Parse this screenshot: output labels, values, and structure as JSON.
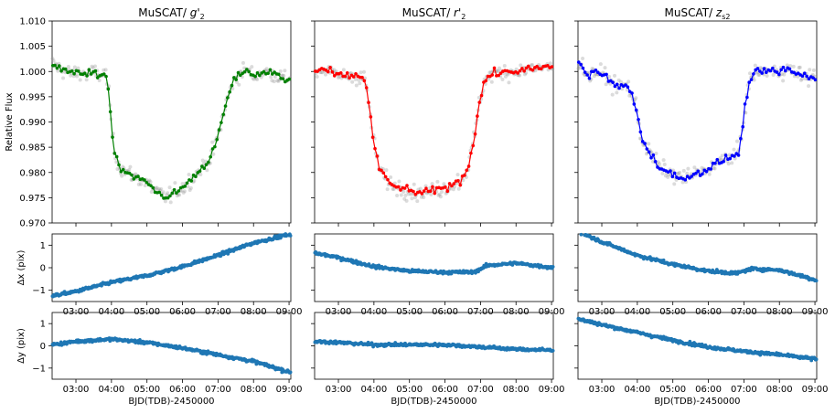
{
  "chart_data": {
    "type": "line",
    "x_label": "BJD(TDB)-2450000",
    "x_ticks": [
      "03:00",
      "04:00",
      "05:00",
      "06:00",
      "07:00",
      "08:00",
      "09:00"
    ],
    "x_tick_hours": [
      3,
      4,
      5,
      6,
      7,
      8,
      9
    ],
    "x_range_hours": [
      2.33,
      9.05
    ],
    "columns": [
      {
        "title_prefix": "MuSCAT/ ",
        "band": "g'",
        "band_sub": "2",
        "color": "#008000"
      },
      {
        "title_prefix": "MuSCAT/ ",
        "band": "r'",
        "band_sub": "2",
        "color": "#ff0000"
      },
      {
        "title_prefix": "MuSCAT/ ",
        "band": "z",
        "band_sub": "s2",
        "color": "#0000ff"
      }
    ],
    "flux_panel": {
      "ylabel": "Relative Flux",
      "ylim": [
        0.97,
        1.01
      ],
      "yticks": [
        "0.970",
        "0.975",
        "0.980",
        "0.985",
        "0.990",
        "0.995",
        "1.000",
        "1.005",
        "1.010"
      ],
      "raw_color": "#999999",
      "series": [
        {
          "band": "g'2",
          "binned": [
            [
              2.35,
              1.0015
            ],
            [
              2.5,
              1.0008
            ],
            [
              2.7,
              1.0
            ],
            [
              2.9,
              0.9995
            ],
            [
              3.1,
              1.0
            ],
            [
              3.3,
              0.9992
            ],
            [
              3.5,
              0.9998
            ],
            [
              3.7,
              0.9993
            ],
            [
              3.85,
              0.9994
            ],
            [
              3.92,
              0.996
            ],
            [
              3.98,
              0.991
            ],
            [
              4.05,
              0.986
            ],
            [
              4.12,
              0.983
            ],
            [
              4.25,
              0.981
            ],
            [
              4.45,
              0.98
            ],
            [
              4.7,
              0.979
            ],
            [
              5.0,
              0.978
            ],
            [
              5.3,
              0.976
            ],
            [
              5.5,
              0.9752
            ],
            [
              5.7,
              0.9755
            ],
            [
              6.0,
              0.977
            ],
            [
              6.3,
              0.979
            ],
            [
              6.55,
              0.981
            ],
            [
              6.8,
              0.983
            ],
            [
              7.0,
              0.987
            ],
            [
              7.2,
              0.993
            ],
            [
              7.4,
              0.9975
            ],
            [
              7.6,
              0.9995
            ],
            [
              7.8,
              1.0005
            ],
            [
              8.0,
              0.999
            ],
            [
              8.3,
              1.0
            ],
            [
              8.6,
              0.9995
            ],
            [
              8.9,
              0.9985
            ],
            [
              9.05,
              0.999
            ]
          ]
        },
        {
          "band": "r'2",
          "binned": [
            [
              2.35,
              1.0
            ],
            [
              2.6,
              1.0005
            ],
            [
              2.85,
              0.9995
            ],
            [
              3.1,
              0.999
            ],
            [
              3.35,
              0.9992
            ],
            [
              3.6,
              0.999
            ],
            [
              3.75,
              0.9985
            ],
            [
              3.85,
              0.994
            ],
            [
              3.95,
              0.988
            ],
            [
              4.05,
              0.984
            ],
            [
              4.15,
              0.981
            ],
            [
              4.3,
              0.979
            ],
            [
              4.5,
              0.9775
            ],
            [
              4.75,
              0.977
            ],
            [
              5.0,
              0.9763
            ],
            [
              5.3,
              0.976
            ],
            [
              5.6,
              0.9762
            ],
            [
              5.9,
              0.9768
            ],
            [
              6.2,
              0.9775
            ],
            [
              6.45,
              0.9785
            ],
            [
              6.65,
              0.981
            ],
            [
              6.8,
              0.986
            ],
            [
              6.95,
              0.993
            ],
            [
              7.1,
              0.998
            ],
            [
              7.3,
              0.9995
            ],
            [
              7.6,
              0.9998
            ],
            [
              7.9,
              1.0
            ],
            [
              8.2,
              1.0002
            ],
            [
              8.5,
              1.0005
            ],
            [
              8.8,
              1.0008
            ],
            [
              9.05,
              1.001
            ]
          ]
        },
        {
          "band": "zs2",
          "binned": [
            [
              2.35,
              1.002
            ],
            [
              2.5,
              1.0005
            ],
            [
              2.65,
              0.999
            ],
            [
              2.8,
              1.0
            ],
            [
              2.95,
              0.9995
            ],
            [
              3.1,
              0.9992
            ],
            [
              3.3,
              0.9975
            ],
            [
              3.5,
              0.997
            ],
            [
              3.7,
              0.9972
            ],
            [
              3.85,
              0.9955
            ],
            [
              4.0,
              0.992
            ],
            [
              4.1,
              0.987
            ],
            [
              4.25,
              0.985
            ],
            [
              4.45,
              0.983
            ],
            [
              4.6,
              0.9812
            ],
            [
              4.8,
              0.9802
            ],
            [
              5.0,
              0.9795
            ],
            [
              5.2,
              0.979
            ],
            [
              5.45,
              0.9792
            ],
            [
              5.7,
              0.9798
            ],
            [
              5.9,
              0.9805
            ],
            [
              6.1,
              0.9812
            ],
            [
              6.3,
              0.982
            ],
            [
              6.5,
              0.9828
            ],
            [
              6.7,
              0.9832
            ],
            [
              6.85,
              0.9838
            ],
            [
              6.95,
              0.988
            ],
            [
              7.05,
              0.994
            ],
            [
              7.15,
              0.998
            ],
            [
              7.3,
              0.9995
            ],
            [
              7.6,
              1.0002
            ],
            [
              7.9,
              0.9998
            ],
            [
              8.2,
              1.0005
            ],
            [
              8.5,
              0.9995
            ],
            [
              8.8,
              0.999
            ],
            [
              9.05,
              0.9988
            ]
          ]
        }
      ]
    },
    "dx_panel": {
      "ylabel": "Δx (pix)",
      "ylim": [
        -1.5,
        1.5
      ],
      "yticks": [
        "−1",
        "0",
        "1"
      ],
      "ytick_values": [
        -1,
        0,
        1
      ],
      "color": "#1f77b4",
      "series": [
        {
          "band": "g'2",
          "trend": [
            [
              2.35,
              -1.25
            ],
            [
              3.0,
              -1.05
            ],
            [
              4.0,
              -0.65
            ],
            [
              5.0,
              -0.35
            ],
            [
              6.0,
              0.05
            ],
            [
              7.0,
              0.55
            ],
            [
              8.0,
              1.1
            ],
            [
              9.05,
              1.5
            ]
          ]
        },
        {
          "band": "r'2",
          "trend": [
            [
              2.35,
              0.65
            ],
            [
              3.0,
              0.45
            ],
            [
              4.0,
              0.05
            ],
            [
              5.0,
              -0.15
            ],
            [
              6.0,
              -0.2
            ],
            [
              6.8,
              -0.2
            ],
            [
              7.2,
              0.1
            ],
            [
              8.0,
              0.2
            ],
            [
              9.05,
              0.0
            ]
          ]
        },
        {
          "band": "zs2",
          "trend": [
            [
              2.35,
              1.6
            ],
            [
              3.0,
              1.15
            ],
            [
              4.0,
              0.55
            ],
            [
              5.0,
              0.15
            ],
            [
              6.0,
              -0.15
            ],
            [
              6.8,
              -0.25
            ],
            [
              7.2,
              -0.05
            ],
            [
              8.0,
              -0.1
            ],
            [
              9.05,
              -0.55
            ]
          ]
        }
      ]
    },
    "dy_panel": {
      "ylabel": "Δy (pix)",
      "ylim": [
        -1.5,
        1.5
      ],
      "yticks": [
        "−1",
        "0",
        "1"
      ],
      "ytick_values": [
        -1,
        0,
        1
      ],
      "color": "#1f77b4",
      "series": [
        {
          "band": "g'2",
          "trend": [
            [
              2.35,
              0.05
            ],
            [
              3.0,
              0.2
            ],
            [
              4.0,
              0.3
            ],
            [
              5.0,
              0.15
            ],
            [
              6.0,
              -0.1
            ],
            [
              7.0,
              -0.4
            ],
            [
              8.0,
              -0.7
            ],
            [
              9.05,
              -1.2
            ]
          ]
        },
        {
          "band": "r'2",
          "trend": [
            [
              2.35,
              0.2
            ],
            [
              3.0,
              0.15
            ],
            [
              4.0,
              0.05
            ],
            [
              5.0,
              0.05
            ],
            [
              6.0,
              0.05
            ],
            [
              7.0,
              -0.05
            ],
            [
              8.0,
              -0.15
            ],
            [
              9.05,
              -0.2
            ]
          ]
        },
        {
          "band": "zs2",
          "trend": [
            [
              2.35,
              1.2
            ],
            [
              3.0,
              0.95
            ],
            [
              4.0,
              0.6
            ],
            [
              5.0,
              0.25
            ],
            [
              6.0,
              -0.05
            ],
            [
              7.0,
              -0.25
            ],
            [
              8.0,
              -0.4
            ],
            [
              9.05,
              -0.6
            ]
          ]
        }
      ]
    }
  }
}
